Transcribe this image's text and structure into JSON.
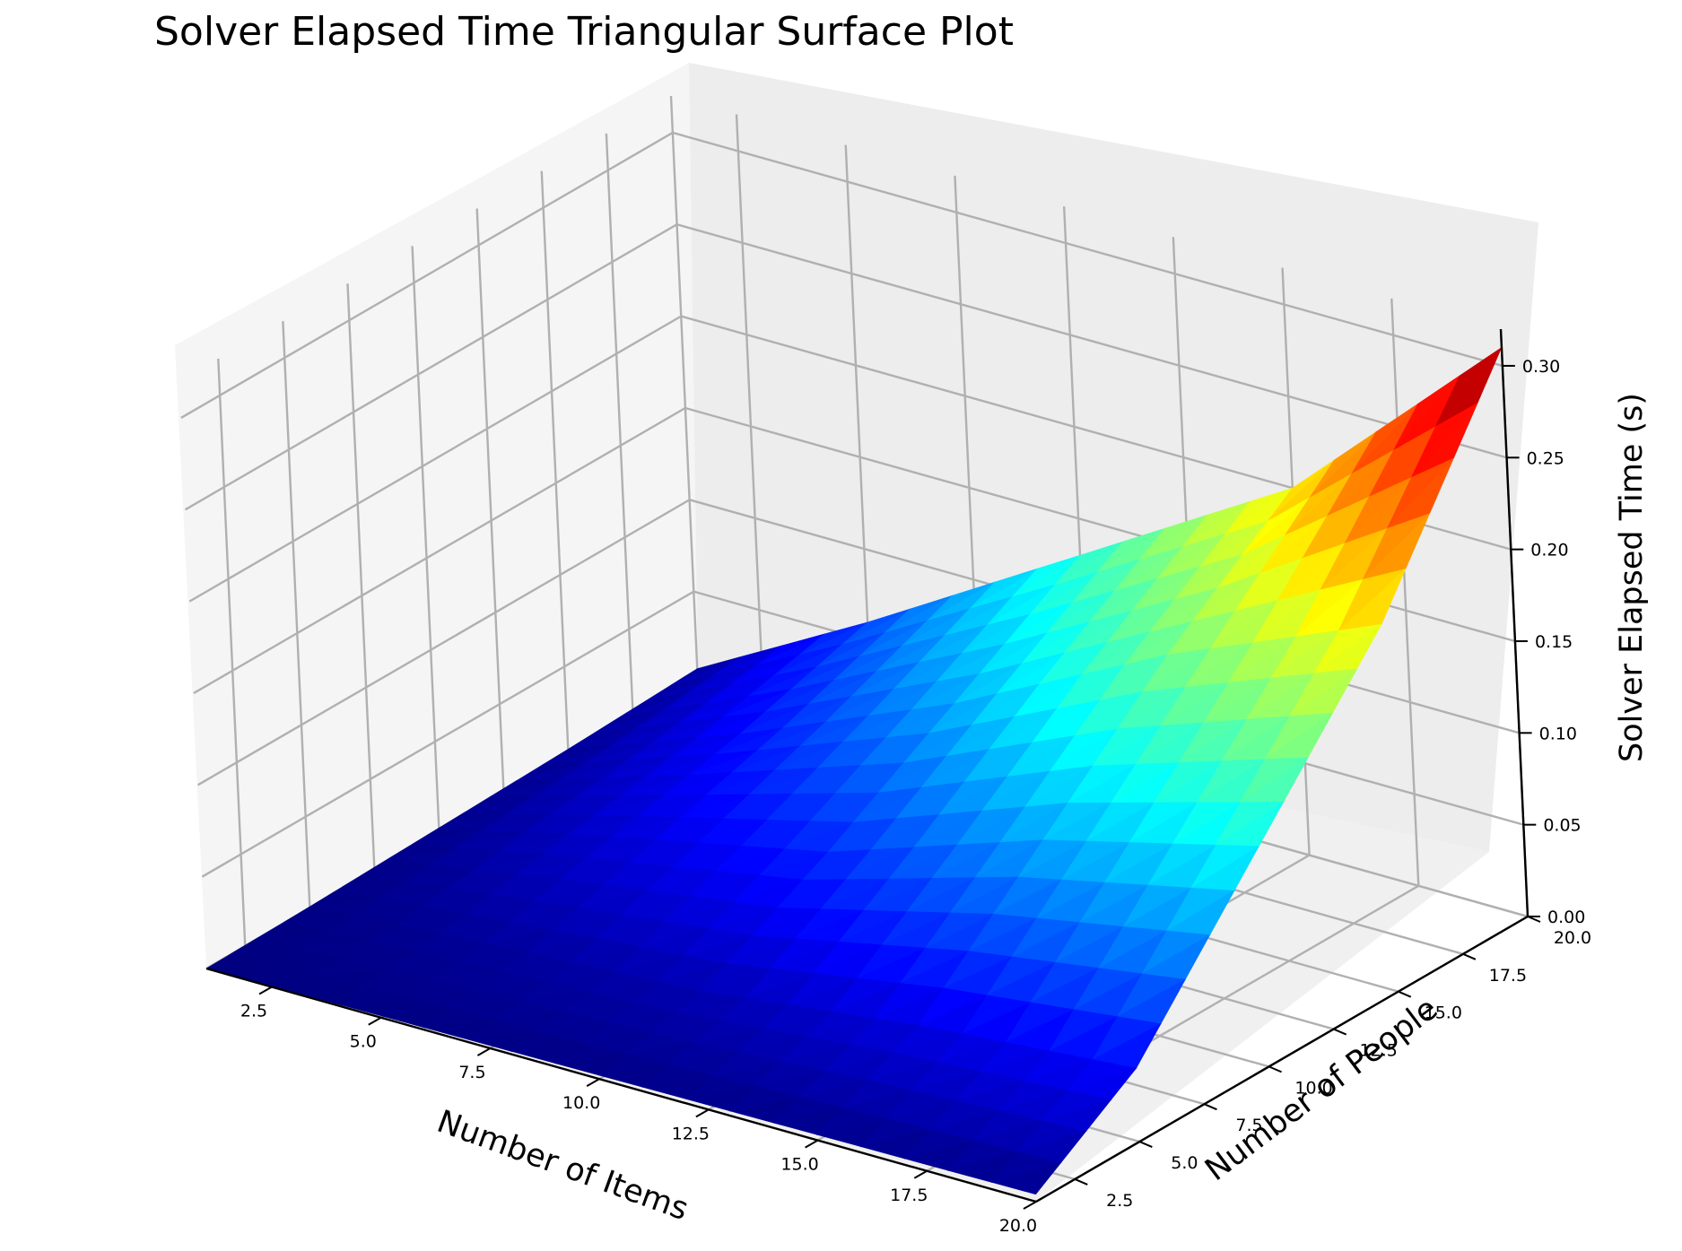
{
  "chart_data": {
    "type": "surface",
    "title": "Solver Elapsed Time Triangular Surface Plot",
    "xlabel": "Number of Items",
    "ylabel": "Number of People",
    "zlabel": "Solver Elapsed Time (s)",
    "xlim": [
      1,
      20
    ],
    "ylim": [
      1,
      20
    ],
    "zlim": [
      0,
      0.32
    ],
    "x_ticks": [
      "2.5",
      "5.0",
      "7.5",
      "10.0",
      "12.5",
      "15.0",
      "17.5",
      "20.0"
    ],
    "y_ticks": [
      "2.5",
      "5.0",
      "7.5",
      "10.0",
      "12.5",
      "15.0",
      "17.5",
      "20.0"
    ],
    "z_ticks": [
      "0.00",
      "0.05",
      "0.10",
      "0.15",
      "0.20",
      "0.25",
      "0.30"
    ],
    "colormap": "jet",
    "grid": true,
    "x": [
      1,
      5,
      10,
      15,
      20
    ],
    "y": [
      1,
      5,
      10,
      15,
      20
    ],
    "z": [
      [
        0.0,
        0.001,
        0.002,
        0.003,
        0.004
      ],
      [
        0.001,
        0.008,
        0.015,
        0.03,
        0.04
      ],
      [
        0.003,
        0.025,
        0.05,
        0.09,
        0.12
      ],
      [
        0.005,
        0.04,
        0.09,
        0.15,
        0.2
      ],
      [
        0.008,
        0.06,
        0.13,
        0.2,
        0.31
      ]
    ]
  }
}
